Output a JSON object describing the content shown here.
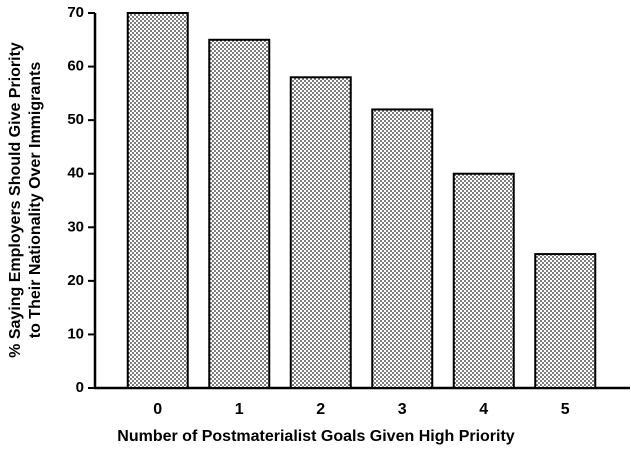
{
  "chart_data": {
    "type": "bar",
    "x_label": "Number of Postmaterialist Goals Given High Priority",
    "y_label": [
      "% Saying Employers Should Give Priority",
      "to Their Nationality Over Immigrants"
    ],
    "categories": [
      "0",
      "1",
      "2",
      "3",
      "4",
      "5"
    ],
    "values": [
      70,
      65,
      58,
      52,
      40,
      25
    ],
    "color": "#bbbbbb",
    "ylim": [
      0,
      70
    ],
    "yticks": [
      0,
      10,
      20,
      30,
      40,
      50,
      60,
      70
    ],
    "grid": false
  }
}
